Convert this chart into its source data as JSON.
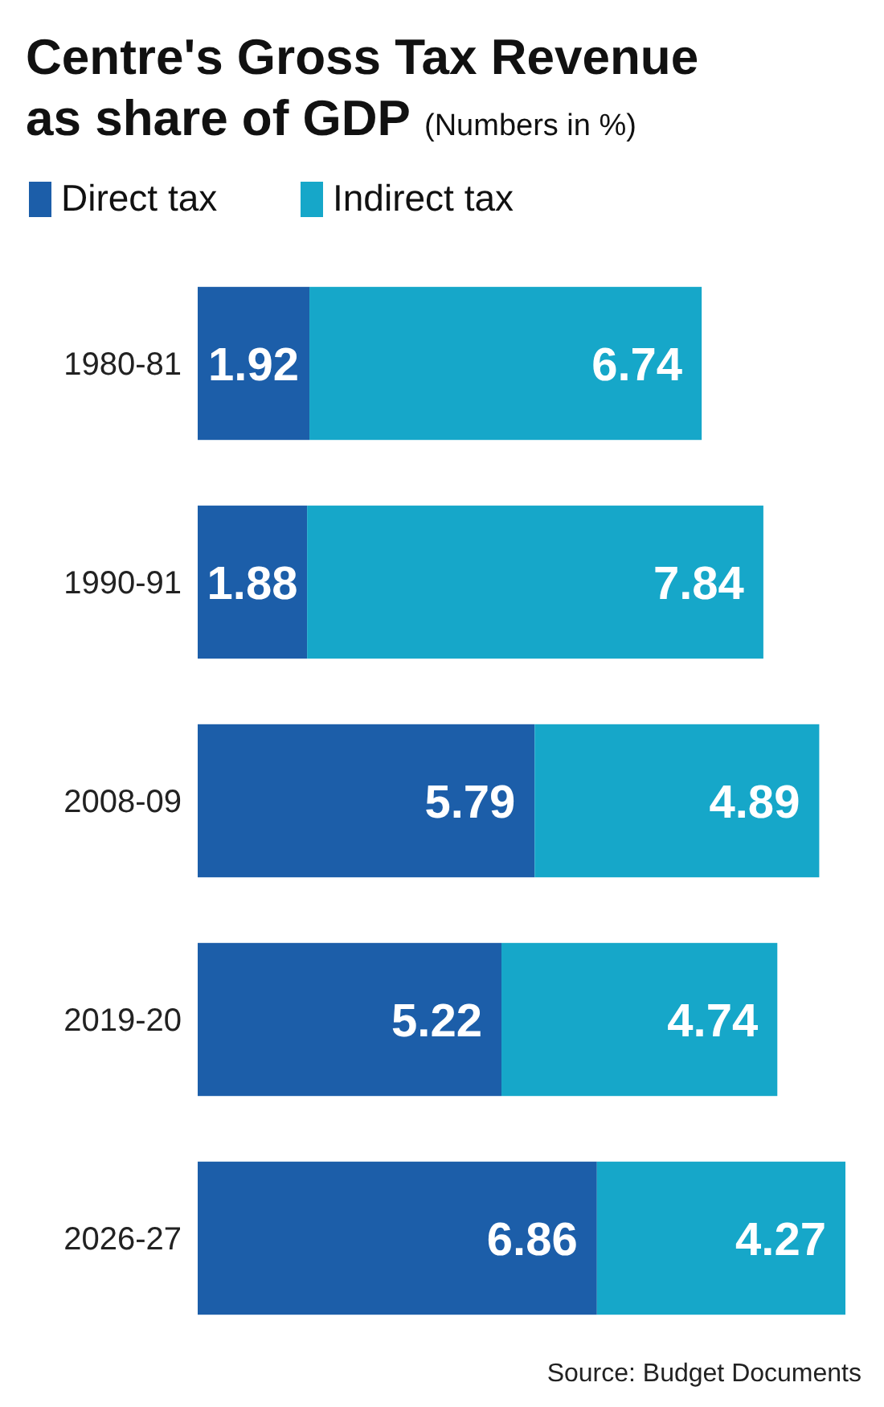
{
  "chart_data": {
    "type": "bar",
    "orientation": "horizontal",
    "stacked": true,
    "title": "Centre's Gross Tax Revenue as share of GDP",
    "subtitle": "(Numbers in %)",
    "categories": [
      "1980-81",
      "1990-91",
      "2008-09",
      "2019-20",
      "2026-27"
    ],
    "series": [
      {
        "name": "Direct tax",
        "color": "#1c5ea9",
        "values": [
          1.92,
          1.88,
          5.79,
          5.22,
          6.86
        ]
      },
      {
        "name": "Indirect tax",
        "color": "#16a7c9",
        "values": [
          6.74,
          7.84,
          4.89,
          4.74,
          4.27
        ]
      }
    ],
    "data_labels": true,
    "legend": "top left",
    "annotations": [
      "Source: Budget Documents"
    ]
  }
}
